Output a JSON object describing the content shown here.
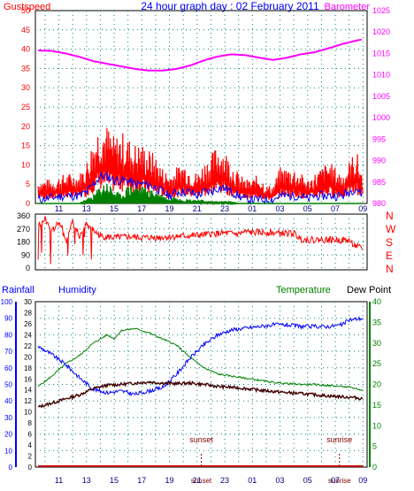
{
  "header": {
    "left_label": "Gustspeed",
    "title": "24 hour graph day : 02 February 2011",
    "right_label": "Barometer"
  },
  "direction_letters": [
    "N",
    "W",
    "S",
    "E",
    "N"
  ],
  "bottom_header": {
    "rainfall": "Rainfall",
    "humidity": "Humidity",
    "temperature": "Temperature",
    "dew_point": "Dew Point"
  },
  "colors": {
    "gust": "#ff0000",
    "wind_avg": "#0000ff",
    "wind_min": "#008000",
    "barometer": "#ff00ff",
    "direction": "#ff0000",
    "humidity": "#0000ff",
    "temperature": "#008000",
    "dewpoint": "#400000",
    "rainfall": "#c00000",
    "grid": "#008080",
    "title": "#0000ff",
    "gust_label": "#ff0000",
    "baro_label": "#ff00ff",
    "direction_letters": "#ff0000",
    "sun_events": "#800000",
    "axis_left": "#0000ff",
    "axis_right_bottom": "#008000"
  },
  "chart_data": [
    {
      "type": "line",
      "panel": "wind-and-pressure",
      "x_ticks": [
        "11",
        "13",
        "15",
        "17",
        "19",
        "21",
        "23",
        "01",
        "03",
        "05",
        "07",
        "09"
      ],
      "y_left": {
        "ticks": [
          0,
          5,
          10,
          15,
          20,
          25,
          30,
          35,
          40,
          45,
          50
        ],
        "range": [
          0,
          50
        ]
      },
      "y_right": {
        "ticks": [
          980,
          985,
          990,
          995,
          1000,
          1005,
          1010,
          1015,
          1020,
          1025
        ],
        "range": [
          980,
          1025
        ]
      },
      "series": [
        {
          "name": "Gustspeed",
          "role": "gust",
          "hours": [
            9.5,
            10.5,
            11.5,
            12.5,
            13.0,
            13.5,
            14.0,
            14.5,
            15.0,
            15.5,
            16.0,
            16.5,
            17.0,
            17.5,
            18.0,
            18.5,
            19.0,
            19.5,
            20.0,
            20.5,
            21.0,
            21.5,
            22.0,
            22.5,
            23.0,
            23.5,
            24.0,
            24.5,
            25.0,
            25.5,
            26.0,
            26.5,
            27.0,
            27.5,
            28.0,
            28.5,
            29.0,
            29.5,
            30.0,
            30.5,
            31.0,
            31.5,
            32.0,
            32.5,
            33.0
          ],
          "values": [
            4,
            4,
            5,
            5,
            7,
            11,
            14,
            13,
            11,
            12,
            11,
            10,
            10,
            9,
            8,
            6,
            5,
            6,
            7,
            6,
            5,
            7,
            8,
            10,
            9,
            7,
            5,
            4,
            4,
            5,
            3,
            3,
            6,
            6,
            6,
            5,
            4,
            5,
            6,
            7,
            6,
            5,
            7,
            9,
            5
          ]
        },
        {
          "name": "",
          "role": "average",
          "hours": [
            9.5,
            10.5,
            11.5,
            12.5,
            13.0,
            13.5,
            14.0,
            14.5,
            15.0,
            15.5,
            16.0,
            16.5,
            17.0,
            17.5,
            18.0,
            18.5,
            19.0,
            19.5,
            20.0,
            20.5,
            21.0,
            21.5,
            22.0,
            22.5,
            23.0,
            23.5,
            24.0,
            24.5,
            25.0,
            25.5,
            26.0,
            26.5,
            27.0,
            27.5,
            28.0,
            28.5,
            29.0,
            29.5,
            30.0,
            30.5,
            31.0,
            31.5,
            32.0,
            32.5,
            33.0
          ],
          "values": [
            1,
            1.5,
            2,
            2,
            3,
            5,
            7,
            7,
            6,
            6,
            6,
            5,
            5,
            5,
            4,
            3,
            2,
            3,
            3,
            3,
            2,
            3,
            3,
            4,
            4,
            3,
            2,
            1,
            1,
            1,
            1,
            1,
            2,
            2,
            2,
            2,
            1,
            2,
            2,
            2,
            2,
            2,
            3,
            4,
            2
          ]
        },
        {
          "name": "",
          "role": "minimum",
          "hours": [
            9.5,
            12.5,
            13.0,
            13.5,
            14.0,
            14.5,
            15.0,
            15.5,
            16.0,
            16.5,
            17.0,
            17.5,
            18.0,
            18.5,
            19.0,
            19.5,
            20.0,
            21.0,
            22.0,
            23.0,
            24.0,
            33.0
          ],
          "values": [
            0,
            0,
            1,
            2,
            4,
            5,
            3,
            2,
            4,
            4,
            4,
            3,
            3,
            2,
            1,
            2,
            1,
            1,
            0.5,
            0.5,
            0,
            0
          ]
        },
        {
          "name": "Barometer",
          "role": "pressure",
          "axis": "right",
          "hours": [
            9.5,
            10.5,
            11.5,
            12.5,
            13.5,
            14.5,
            15.5,
            16.5,
            17.5,
            18.5,
            19.5,
            20.5,
            21.5,
            22.5,
            23.5,
            24.5,
            25.5,
            26.5,
            27.5,
            28.5,
            29.5,
            30.5,
            31.5,
            32.5,
            33.0
          ],
          "values": [
            1015.7,
            1015.6,
            1015.0,
            1014.2,
            1013.2,
            1012.6,
            1012.0,
            1011.4,
            1011.0,
            1011.0,
            1011.4,
            1012.2,
            1013.4,
            1014.3,
            1014.8,
            1014.6,
            1014.0,
            1013.5,
            1014.0,
            1014.8,
            1015.3,
            1016.2,
            1017.2,
            1018.0,
            1018.3
          ]
        }
      ]
    },
    {
      "type": "line",
      "panel": "wind-direction",
      "x_ticks": [],
      "y_left": {
        "ticks": [
          0,
          90,
          180,
          270,
          360
        ],
        "range": [
          0,
          360
        ]
      },
      "series": [
        {
          "name": "",
          "role": "direction",
          "hours": [
            9.5,
            10.0,
            10.5,
            11.0,
            11.5,
            12.0,
            12.5,
            13.0,
            13.5,
            14.0,
            15.0,
            16.0,
            17.0,
            18.0,
            19.0,
            20.0,
            21.0,
            22.0,
            23.0,
            24.0,
            24.5,
            25.0,
            26.0,
            27.0,
            28.0,
            28.5,
            29.0,
            30.0,
            31.0,
            32.0,
            32.5,
            33.0
          ],
          "values": [
            300,
            340,
            250,
            320,
            180,
            320,
            220,
            300,
            260,
            220,
            210,
            215,
            210,
            210,
            215,
            220,
            225,
            235,
            240,
            235,
            250,
            245,
            245,
            240,
            240,
            200,
            195,
            195,
            195,
            190,
            150,
            130
          ]
        }
      ]
    },
    {
      "type": "line",
      "panel": "humidity-temperature",
      "x_ticks": [
        "11",
        "13",
        "15",
        "17",
        "19",
        "21",
        "23",
        "01",
        "03",
        "05",
        "07",
        "09"
      ],
      "y_left_rain": {
        "ticks": [
          0,
          10,
          20,
          30,
          40,
          50,
          60,
          70,
          80,
          90,
          100
        ],
        "range": [
          0,
          100
        ]
      },
      "y_left_humidity": {
        "ticks": [
          0,
          2,
          4,
          6,
          8,
          10,
          12,
          14,
          16,
          18,
          20,
          22,
          24,
          26,
          28,
          30
        ],
        "range": [
          0,
          30
        ]
      },
      "y_right": {
        "ticks": [
          0,
          5,
          10,
          15,
          20,
          25,
          30,
          35,
          40
        ],
        "range": [
          0,
          40
        ]
      },
      "annotations": [
        {
          "text": "sunset",
          "hour": 21.3
        },
        {
          "text": "sunrise",
          "hour": 31.3
        }
      ],
      "series": [
        {
          "name": "Humidity",
          "role": "humidity",
          "axis": "rain",
          "hours": [
            9.5,
            10.5,
            11.5,
            12.5,
            13.5,
            14.5,
            15.5,
            16.5,
            17.5,
            18.5,
            19.5,
            20.5,
            21.5,
            22.5,
            23.5,
            24.5,
            25.5,
            26.5,
            27.5,
            28.5,
            29.5,
            30.5,
            31.5,
            32.0,
            33.0
          ],
          "values": [
            73,
            68,
            62,
            54,
            47,
            45,
            46,
            44,
            46,
            48,
            56,
            66,
            74,
            80,
            83,
            84,
            85,
            86,
            86,
            85,
            85,
            85,
            86,
            89,
            90
          ]
        },
        {
          "name": "Temperature",
          "role": "temperature",
          "axis": "right",
          "hours": [
            9.5,
            10.5,
            11.5,
            12.5,
            13.5,
            14.5,
            15.0,
            15.5,
            16.5,
            17.5,
            18.5,
            19.5,
            20.5,
            21.5,
            22.5,
            23.5,
            24.5,
            25.5,
            26.5,
            27.5,
            28.5,
            29.5,
            30.5,
            31.5,
            32.5,
            33.0
          ],
          "values": [
            19.5,
            22,
            25,
            27,
            30,
            32,
            31,
            33,
            33.5,
            32.5,
            31,
            29.5,
            26.5,
            24,
            22.5,
            22,
            21.5,
            21,
            20.5,
            20.2,
            20,
            20,
            19.7,
            19.5,
            19,
            18.5
          ]
        },
        {
          "name": "Dew Point",
          "role": "dewpoint",
          "axis": "right",
          "hours": [
            9.5,
            10.5,
            11.5,
            12.5,
            13.5,
            14.5,
            15.5,
            16.5,
            17.5,
            18.5,
            19.5,
            20.5,
            21.5,
            22.5,
            23.5,
            24.5,
            25.5,
            26.5,
            27.5,
            28.5,
            29.5,
            30.5,
            31.5,
            32.5,
            33.0
          ],
          "values": [
            14.5,
            15.5,
            16.5,
            17.5,
            19,
            19.8,
            20,
            20.3,
            20.6,
            20.3,
            20.2,
            20.3,
            20,
            19.5,
            19.3,
            19,
            18.6,
            18.3,
            18.0,
            17.8,
            17.5,
            17.2,
            17.0,
            16.8,
            16.5
          ]
        },
        {
          "name": "Rainfall",
          "role": "rainfall",
          "axis": "rain",
          "hours": [
            9.5,
            33.0
          ],
          "values": [
            0,
            0
          ]
        }
      ]
    }
  ]
}
